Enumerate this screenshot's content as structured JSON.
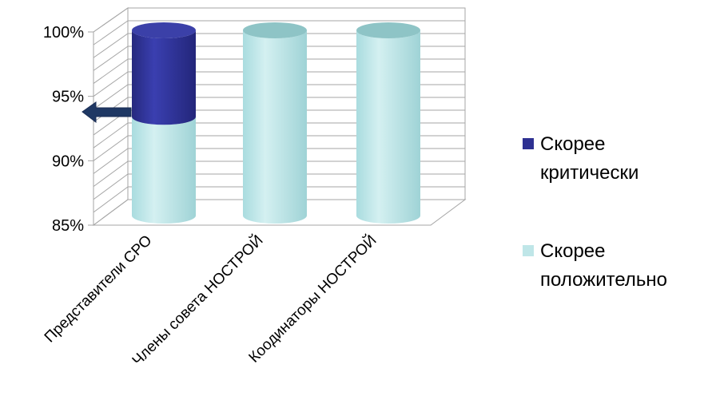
{
  "chart_data": {
    "type": "bar",
    "style": "3d-cylinder-stacked-percent",
    "categories": [
      "Представители СРО",
      "Члены совета НОСТРОЙ",
      "Коодинаторы НОСТРОЙ"
    ],
    "series": [
      {
        "name": "Скорее положительно",
        "values": [
          93,
          100,
          100
        ],
        "color": "#bfe6e8"
      },
      {
        "name": "Скорее критически",
        "values": [
          7,
          0,
          0
        ],
        "color": "#2e3192"
      }
    ],
    "y_ticks": [
      "85%",
      "90%",
      "95%",
      "100%"
    ],
    "ylim": [
      85,
      100
    ],
    "grid": true,
    "legend_position": "right",
    "legend": [
      {
        "label_lines": [
          "Скорее",
          "критически"
        ],
        "color": "#2e3192"
      },
      {
        "label_lines": [
          "Скорее",
          "положительно"
        ],
        "color": "#bfe6e8"
      }
    ],
    "annotation": {
      "type": "arrow",
      "points_to_value": 93.8,
      "color": "#1f3864"
    }
  }
}
